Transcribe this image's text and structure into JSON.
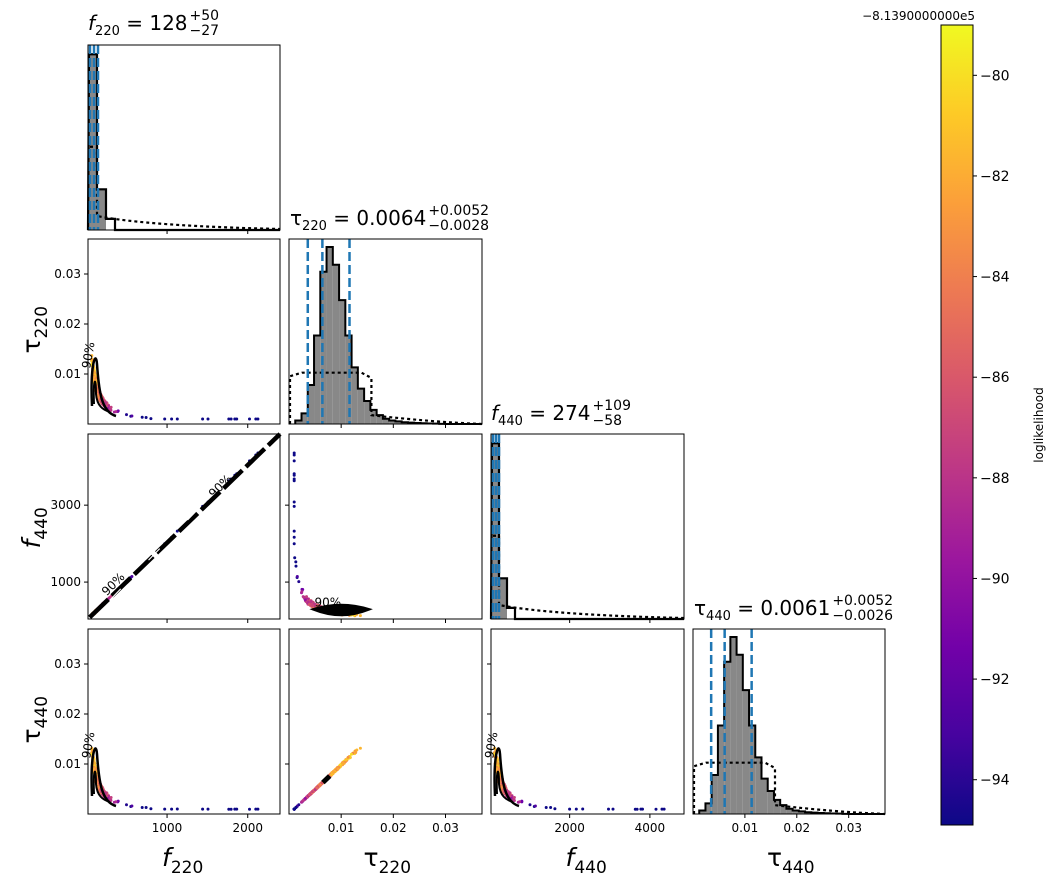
{
  "chart_data": {
    "type": "scatter",
    "kind": "corner-plot",
    "parameters": [
      "f220",
      "tau220",
      "f440",
      "tau440"
    ],
    "titles": [
      {
        "param": "f",
        "sub": "220",
        "eq": " = 128",
        "sup": "+50",
        "low": "−27"
      },
      {
        "param": "τ",
        "sub": "220",
        "eq": " = 0.0064",
        "sup": "+0.0052",
        "low": "−0.0028"
      },
      {
        "param": "f",
        "sub": "440",
        "eq": " = 274",
        "sup": "+109",
        "low": "−58"
      },
      {
        "param": "τ",
        "sub": "440",
        "eq": " = 0.0061",
        "sup": "+0.0052",
        "low": "−0.0026"
      }
    ],
    "axis_labels": [
      {
        "main": "f",
        "sub": "220"
      },
      {
        "main": "τ",
        "sub": "220"
      },
      {
        "main": "f",
        "sub": "440"
      },
      {
        "main": "τ",
        "sub": "440"
      }
    ],
    "ranges": {
      "f220": [
        20,
        2400
      ],
      "tau220": [
        0,
        0.037
      ],
      "f440": [
        40,
        4850
      ],
      "tau440": [
        0,
        0.037
      ]
    },
    "ticks": {
      "f220": [
        1000,
        2000
      ],
      "tau220": [
        0.01,
        0.02,
        0.03
      ],
      "f440_x": [
        2000,
        4000
      ],
      "f440_y": [
        1000,
        3000
      ],
      "tau440": [
        0.01,
        0.02,
        0.03
      ]
    },
    "tick_labels": {
      "f220": [
        "1000",
        "2000"
      ],
      "tau220": [
        "0.01",
        "0.02",
        "0.03"
      ],
      "f440_x": [
        "2000",
        "4000"
      ],
      "f440_y": [
        "1000",
        "3000"
      ],
      "tau440": [
        "0.01",
        "0.02",
        "0.03"
      ]
    },
    "quantiles": {
      "f220": [
        101,
        128,
        178
      ],
      "tau220": [
        0.0036,
        0.0064,
        0.0116
      ],
      "f440": [
        216,
        274,
        383
      ],
      "tau440": [
        0.0035,
        0.0061,
        0.0113
      ]
    },
    "tau_hist": {
      "bin_width": 0.0012,
      "start": 0.0012,
      "heights": [
        0.02,
        0.06,
        0.22,
        0.5,
        0.86,
        1.0,
        0.9,
        0.7,
        0.5,
        0.32,
        0.2,
        0.13,
        0.08,
        0.05,
        0.03,
        0.02,
        0.015,
        0.01,
        0.008,
        0.006,
        0.004,
        0.003,
        0.002,
        0.001
      ]
    },
    "contour_label": "90%",
    "colorbar": {
      "label": "loglikelihood",
      "offset": "−8.1390000000e5",
      "min": -94.9,
      "max": -79.0,
      "ticks": [
        -80,
        -82,
        -84,
        -86,
        -88,
        -90,
        -92,
        -94
      ],
      "tick_labels": [
        "−80",
        "−82",
        "−84",
        "−86",
        "−88",
        "−90",
        "−92",
        "−94"
      ],
      "colors": [
        "#0d0887",
        "#46039f",
        "#7201a8",
        "#9c179e",
        "#bd3786",
        "#d8576b",
        "#ed7953",
        "#fb9f3a",
        "#fdca26",
        "#f0f921"
      ]
    }
  }
}
